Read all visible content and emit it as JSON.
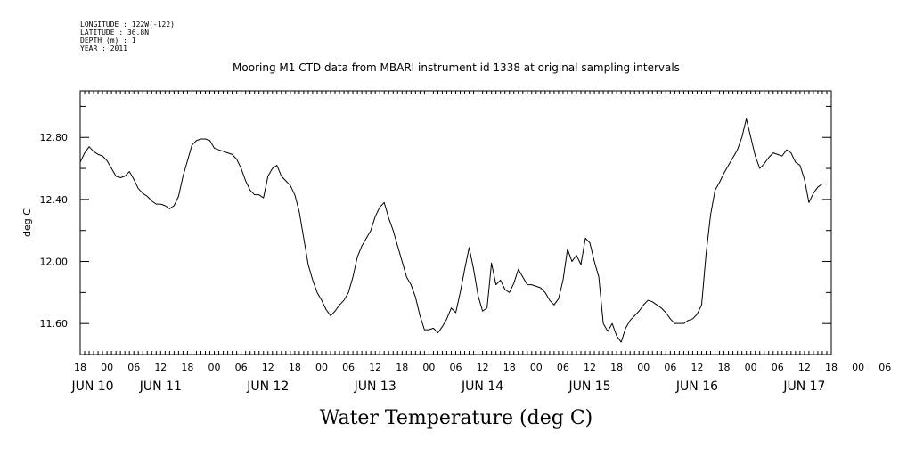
{
  "meta": {
    "longitude": "LONGITUDE : 122W(-122)",
    "latitude": "LATITUDE : 36.8N",
    "depth": "DEPTH (m) : 1",
    "year": "YEAR : 2011"
  },
  "chart_data": {
    "type": "line",
    "title": "Mooring M1 CTD data from MBARI instrument id 1338 at original sampling intervals",
    "xlabel": "Water Temperature (deg C)",
    "ylabel": "deg C",
    "x_unit": "hours since JUN 10 00:00",
    "xlim": [
      18,
      186
    ],
    "ylim": [
      11.4,
      13.1
    ],
    "y_ticks": [
      "11.60",
      "12.00",
      "12.40",
      "12.80"
    ],
    "x_hour_ticks": [
      "18",
      "00",
      "06",
      "12",
      "18",
      "00",
      "06",
      "12",
      "18",
      "00",
      "06",
      "12",
      "18",
      "00",
      "06",
      "12",
      "18",
      "00",
      "06",
      "12",
      "18",
      "00",
      "06",
      "12",
      "18",
      "00",
      "06",
      "12",
      "18",
      "00",
      "06",
      "12",
      "18"
    ],
    "day_labels": [
      "JUN 10",
      "JUN 11",
      "JUN 12",
      "JUN 13",
      "JUN 14",
      "JUN 15",
      "JUN 16",
      "JUN 17"
    ],
    "grid": false,
    "series": [
      {
        "x": [
          18,
          19,
          20,
          21,
          22,
          23,
          24,
          25,
          26,
          27,
          28,
          29,
          30,
          31,
          32,
          33,
          34,
          35,
          36,
          37,
          38,
          39,
          40,
          41,
          42,
          43,
          44,
          45,
          46,
          47,
          48,
          49,
          50,
          51,
          52,
          53,
          54,
          55,
          56,
          57,
          58,
          59,
          60,
          61,
          62,
          63,
          64,
          65,
          66,
          67,
          68,
          69,
          70,
          71,
          72,
          73,
          74,
          75,
          76,
          77,
          78,
          79,
          80,
          81,
          82,
          83,
          84,
          85,
          86,
          87,
          88,
          89,
          90,
          91,
          92,
          93,
          94,
          95,
          96,
          97,
          98,
          99,
          100,
          101,
          102,
          103,
          104,
          105,
          106,
          107,
          108,
          109,
          110,
          111,
          112,
          113,
          114,
          115,
          116,
          117,
          118,
          119,
          120,
          121,
          122,
          123,
          124,
          125,
          126,
          127,
          128,
          129,
          130,
          131,
          132,
          133,
          134,
          135,
          136,
          137,
          138,
          139,
          140,
          141,
          142,
          143,
          144,
          145,
          146,
          147,
          148,
          149,
          150,
          151,
          152,
          153,
          154,
          155,
          156,
          157,
          158,
          159,
          160,
          161,
          162,
          163,
          164,
          165,
          166,
          167,
          168,
          169,
          170,
          171,
          172,
          173,
          174,
          175,
          176,
          177,
          178,
          179,
          180,
          181,
          182,
          183,
          184,
          185,
          186
        ],
        "values": [
          12.64,
          12.7,
          12.74,
          12.71,
          12.69,
          12.68,
          12.65,
          12.6,
          12.55,
          12.54,
          12.55,
          12.58,
          12.53,
          12.47,
          12.44,
          12.42,
          12.39,
          12.37,
          12.37,
          12.36,
          12.34,
          12.36,
          12.42,
          12.55,
          12.65,
          12.75,
          12.78,
          12.79,
          12.79,
          12.78,
          12.73,
          12.72,
          12.71,
          12.7,
          12.69,
          12.66,
          12.6,
          12.52,
          12.46,
          12.43,
          12.43,
          12.41,
          12.55,
          12.6,
          12.62,
          12.55,
          12.52,
          12.49,
          12.43,
          12.32,
          12.15,
          11.98,
          11.88,
          11.8,
          11.75,
          11.69,
          11.65,
          11.68,
          11.72,
          11.75,
          11.8,
          11.9,
          12.03,
          12.1,
          12.15,
          12.2,
          12.29,
          12.35,
          12.38,
          12.28,
          12.2,
          12.1,
          12.0,
          11.9,
          11.85,
          11.77,
          11.65,
          11.56,
          11.56,
          11.57,
          11.54,
          11.58,
          11.63,
          11.7,
          11.67,
          11.8,
          11.95,
          12.09,
          11.95,
          11.78,
          11.68,
          11.7,
          11.99,
          11.85,
          11.88,
          11.82,
          11.8,
          11.86,
          11.95,
          11.9,
          11.85,
          11.85,
          11.84,
          11.83,
          11.8,
          11.75,
          11.72,
          11.76,
          11.88,
          12.08,
          12.0,
          12.04,
          11.98,
          12.15,
          12.12,
          12.0,
          11.9,
          11.6,
          11.55,
          11.6,
          11.52,
          11.48,
          11.57,
          11.62,
          11.65,
          11.68,
          11.72,
          11.75,
          11.74,
          11.72,
          11.7,
          11.67,
          11.63,
          11.6,
          11.6,
          11.6,
          11.62,
          11.63,
          11.66,
          11.72,
          12.05,
          12.3,
          12.46,
          12.51,
          12.57,
          12.62,
          12.67,
          12.72,
          12.8,
          12.92,
          12.8,
          12.68,
          12.6,
          12.63,
          12.67,
          12.7,
          12.69,
          12.68,
          12.72,
          12.7,
          12.64,
          12.62,
          12.53,
          12.38,
          12.44,
          12.48,
          12.5,
          12.5,
          12.5
        ]
      }
    ]
  }
}
